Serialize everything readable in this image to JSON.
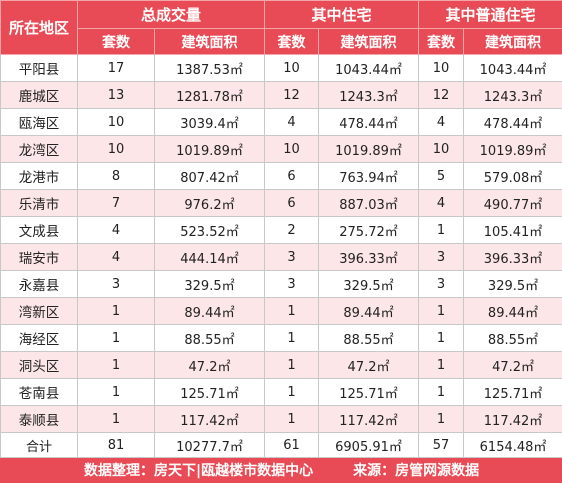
{
  "header": {
    "region_label": "所在地区",
    "groups": [
      "总成交量",
      "其中住宅",
      "其中普通住宅"
    ],
    "sub_labels": [
      "套数",
      "建筑面积",
      "套数",
      "建筑面积",
      "套数",
      "建筑面积"
    ]
  },
  "rows": [
    {
      "region": "平阳县",
      "c1": "17",
      "a1": "1387.53㎡",
      "c2": "10",
      "a2": "1043.44㎡",
      "c3": "10",
      "a3": "1043.44㎡"
    },
    {
      "region": "鹿城区",
      "c1": "13",
      "a1": "1281.78㎡",
      "c2": "12",
      "a2": "1243.3㎡",
      "c3": "12",
      "a3": "1243.3㎡"
    },
    {
      "region": "瓯海区",
      "c1": "10",
      "a1": "3039.4㎡",
      "c2": "4",
      "a2": "478.44㎡",
      "c3": "4",
      "a3": "478.44㎡"
    },
    {
      "region": "龙湾区",
      "c1": "10",
      "a1": "1019.89㎡",
      "c2": "10",
      "a2": "1019.89㎡",
      "c3": "10",
      "a3": "1019.89㎡"
    },
    {
      "region": "龙港市",
      "c1": "8",
      "a1": "807.42㎡",
      "c2": "6",
      "a2": "763.94㎡",
      "c3": "5",
      "a3": "579.08㎡"
    },
    {
      "region": "乐清市",
      "c1": "7",
      "a1": "976.2㎡",
      "c2": "6",
      "a2": "887.03㎡",
      "c3": "4",
      "a3": "490.77㎡"
    },
    {
      "region": "文成县",
      "c1": "4",
      "a1": "523.52㎡",
      "c2": "2",
      "a2": "275.72㎡",
      "c3": "1",
      "a3": "105.41㎡"
    },
    {
      "region": "瑞安市",
      "c1": "4",
      "a1": "444.14㎡",
      "c2": "3",
      "a2": "396.33㎡",
      "c3": "3",
      "a3": "396.33㎡"
    },
    {
      "region": "永嘉县",
      "c1": "3",
      "a1": "329.5㎡",
      "c2": "3",
      "a2": "329.5㎡",
      "c3": "3",
      "a3": "329.5㎡"
    },
    {
      "region": "湾新区",
      "c1": "1",
      "a1": "89.44㎡",
      "c2": "1",
      "a2": "89.44㎡",
      "c3": "1",
      "a3": "89.44㎡"
    },
    {
      "region": "海经区",
      "c1": "1",
      "a1": "88.55㎡",
      "c2": "1",
      "a2": "88.55㎡",
      "c3": "1",
      "a3": "88.55㎡"
    },
    {
      "region": "洞头区",
      "c1": "1",
      "a1": "47.2㎡",
      "c2": "1",
      "a2": "47.2㎡",
      "c3": "1",
      "a3": "47.2㎡"
    },
    {
      "region": "苍南县",
      "c1": "1",
      "a1": "125.71㎡",
      "c2": "1",
      "a2": "125.71㎡",
      "c3": "1",
      "a3": "125.71㎡"
    },
    {
      "region": "泰顺县",
      "c1": "1",
      "a1": "117.42㎡",
      "c2": "1",
      "a2": "117.42㎡",
      "c3": "1",
      "a3": "117.42㎡"
    }
  ],
  "total": {
    "region": "合计",
    "c1": "81",
    "a1": "10277.7㎡",
    "c2": "61",
    "a2": "6905.91㎡",
    "c3": "57",
    "a3": "6154.48㎡"
  },
  "footer": {
    "compiled_by": "数据整理：房天下|瓯越楼市数据中心",
    "source": "来源：房管网源数据"
  },
  "colors": {
    "header_bg": "#e84b55",
    "stripe": "#fde6e7"
  }
}
